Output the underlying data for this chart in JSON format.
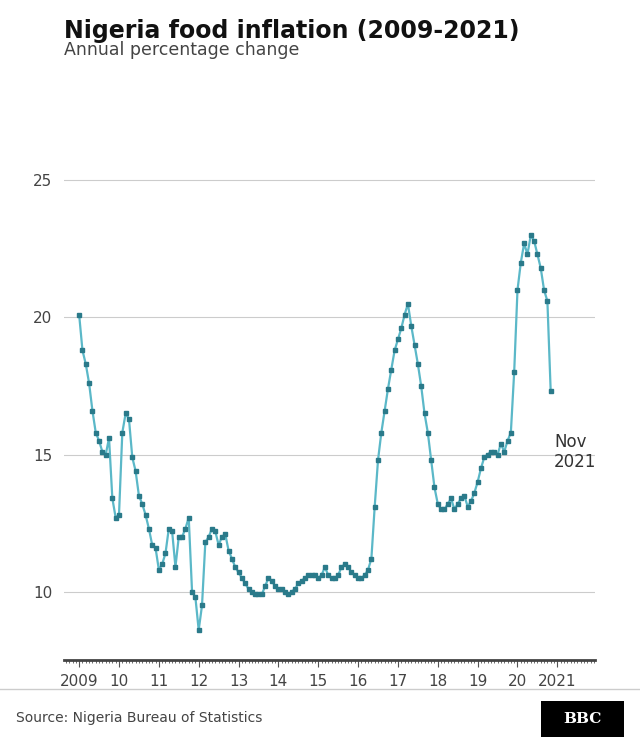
{
  "title": "Nigeria food inflation (2009-2021)",
  "subtitle": "Annual percentage change",
  "source": "Source: Nigeria Bureau of Statistics",
  "line_color": "#5bb8c8",
  "marker_color": "#2a7a8a",
  "background_color": "#ffffff",
  "annotation_text": "Nov\n2021",
  "ylim": [
    7.5,
    26
  ],
  "yticks": [
    10,
    15,
    20,
    25
  ],
  "xlabel_ticks": [
    "2009",
    "10",
    "11",
    "12",
    "13",
    "14",
    "15",
    "16",
    "17",
    "18",
    "19",
    "20",
    "2021"
  ],
  "values": [
    20.1,
    18.8,
    18.3,
    17.6,
    16.6,
    15.8,
    15.5,
    15.1,
    15.0,
    15.6,
    13.4,
    12.7,
    12.8,
    15.8,
    16.5,
    16.3,
    14.9,
    14.4,
    13.5,
    13.2,
    12.8,
    12.3,
    11.7,
    11.6,
    10.8,
    11.0,
    11.4,
    12.3,
    12.2,
    10.9,
    12.0,
    12.0,
    12.3,
    12.7,
    10.0,
    9.8,
    8.6,
    9.5,
    11.8,
    12.0,
    12.3,
    12.2,
    11.7,
    12.0,
    12.1,
    11.5,
    11.2,
    10.9,
    10.7,
    10.5,
    10.3,
    10.1,
    10.0,
    9.9,
    9.9,
    9.9,
    10.2,
    10.5,
    10.4,
    10.2,
    10.1,
    10.1,
    10.0,
    9.9,
    10.0,
    10.1,
    10.3,
    10.4,
    10.5,
    10.6,
    10.6,
    10.6,
    10.5,
    10.6,
    10.9,
    10.6,
    10.5,
    10.5,
    10.6,
    10.9,
    11.0,
    10.9,
    10.7,
    10.6,
    10.5,
    10.5,
    10.6,
    10.8,
    11.2,
    13.1,
    14.8,
    15.8,
    16.6,
    17.4,
    18.1,
    18.8,
    19.2,
    19.6,
    20.1,
    20.5,
    19.7,
    19.0,
    18.3,
    17.5,
    16.5,
    15.8,
    14.8,
    13.8,
    13.2,
    13.0,
    13.0,
    13.2,
    13.4,
    13.0,
    13.2,
    13.4,
    13.5,
    13.1,
    13.3,
    13.6,
    14.0,
    14.5,
    14.9,
    15.0,
    15.1,
    15.1,
    15.0,
    15.4,
    15.1,
    15.5,
    15.8,
    18.0,
    21.0,
    22.0,
    22.7,
    22.3,
    23.0,
    22.8,
    22.3,
    21.8,
    21.0,
    20.6,
    17.3
  ]
}
